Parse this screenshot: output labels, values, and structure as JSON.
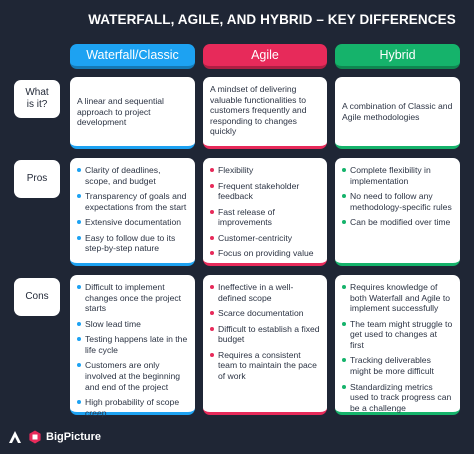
{
  "title": "WATERFALL, AGILE, AND HYBRID – KEY DIFFERENCES",
  "columns": [
    {
      "label": "Waterfall/Classic",
      "color": "#1da2f2"
    },
    {
      "label": "Agile",
      "color": "#e72a5a"
    },
    {
      "label": "Hybrid",
      "color": "#15b36b"
    }
  ],
  "rows": {
    "what": {
      "label": "What is it?",
      "cells": [
        "A linear and sequential approach to project development",
        "A mindset of delivering valuable functionalities to customers frequently and responding to changes quickly",
        "A combination of Classic and Agile methodologies"
      ]
    },
    "pros": {
      "label": "Pros",
      "cells": [
        [
          "Clarity of deadlines, scope, and budget",
          "Transparency of goals and expectations from the start",
          "Extensive documentation",
          "Easy to follow due to its step-by-step nature"
        ],
        [
          "Flexibility",
          "Frequent stakeholder feedback",
          "Fast release of improvements",
          "Customer-centricity",
          "Focus on providing value"
        ],
        [
          "Complete flexibility in implementation",
          "No need to follow any methodology-specific rules",
          "Can be modified over time"
        ]
      ]
    },
    "cons": {
      "label": "Cons",
      "cells": [
        [
          "Difficult to implement changes once the project starts",
          "Slow lead time",
          "Testing happens late in the life cycle",
          "Customers are only involved at the beginning and end of the project",
          "High probability of scope creep"
        ],
        [
          "Ineffective in a well-defined scope",
          "Scarce documentation",
          "Difficult to establish a fixed budget",
          "Requires a consistent team to maintain the pace of work"
        ],
        [
          "Requires knowledge of both Waterfall and Agile to implement successfully",
          "The team might struggle to get used to changes at first",
          "Tracking deliverables might be more difficult",
          "Standardizing metrics used to track progress can be a challenge"
        ]
      ]
    }
  },
  "brand": {
    "name": "BigPicture",
    "icon": "bigpicture-logo-icon",
    "mark": "triangle-logo-icon"
  }
}
